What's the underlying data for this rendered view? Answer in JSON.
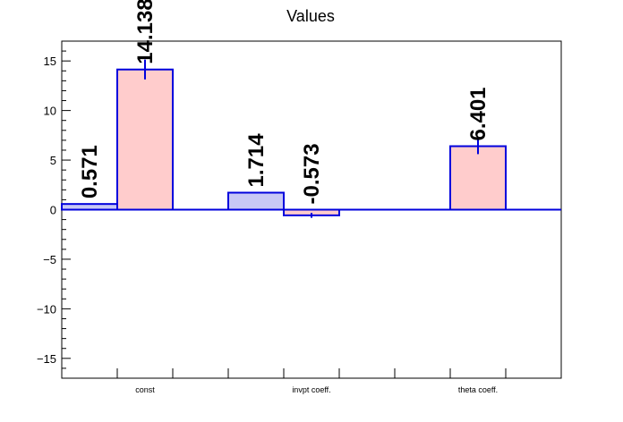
{
  "chart_data": {
    "type": "bar",
    "title": "Values",
    "xlabel": "",
    "ylabel": "",
    "ylim": [
      -17,
      17
    ],
    "yticks": [
      -15,
      -10,
      -5,
      0,
      5,
      10,
      15
    ],
    "categories": [
      "const",
      "invpt coeff.",
      "theta coeff."
    ],
    "series": [
      {
        "color": "#c8c8f5",
        "values": [
          0.571,
          1.714,
          null
        ],
        "errors": [
          0,
          0,
          null
        ],
        "labels": [
          "0.571",
          "1.714",
          ""
        ]
      },
      {
        "color": "#ffcccc",
        "values": [
          14.138,
          -0.573,
          6.401
        ],
        "errors": [
          1.0,
          0.25,
          0.8
        ],
        "labels": [
          "14.138",
          "-0.573",
          "6.401"
        ]
      }
    ],
    "grid": false,
    "legend": "none",
    "colors": {
      "border": "#0000dd",
      "axis": "#000000"
    }
  }
}
